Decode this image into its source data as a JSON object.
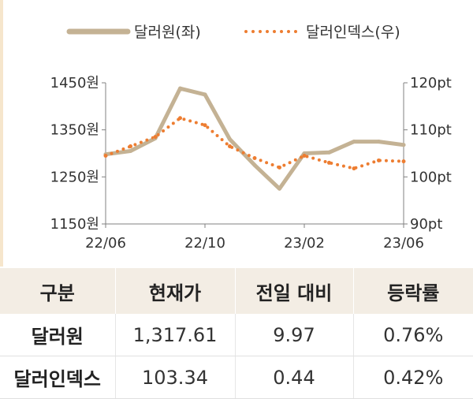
{
  "chart_data": {
    "type": "line",
    "x_ticks": [
      "22/06",
      "22/10",
      "23/02",
      "23/06"
    ],
    "y_left": {
      "ticks": [
        "1450원",
        "1350원",
        "1250원",
        "1150원"
      ],
      "ylim": [
        1150,
        1450
      ]
    },
    "y_right": {
      "ticks": [
        "120pt",
        "110pt",
        "100pt",
        "90pt"
      ],
      "ylim": [
        90,
        120
      ]
    },
    "grid": false,
    "legend_position": "top",
    "series": [
      {
        "name": "달러원(좌)",
        "axis": "left",
        "style": "solid",
        "color": "#c4b294",
        "x": [
          "22/06",
          "22/07",
          "22/08",
          "22/09",
          "22/10",
          "22/11",
          "22/12",
          "23/01",
          "23/02",
          "23/03",
          "23/04",
          "23/05",
          "23/06"
        ],
        "values": [
          1298,
          1305,
          1332,
          1438,
          1425,
          1330,
          1275,
          1225,
          1300,
          1302,
          1325,
          1325,
          1318
        ]
      },
      {
        "name": "달러인덱스(우)",
        "axis": "right",
        "style": "dotted",
        "color": "#ed7d31",
        "x": [
          "22/06",
          "22/07",
          "22/08",
          "22/09",
          "22/10",
          "22/11",
          "22/12",
          "23/01",
          "23/02",
          "23/03",
          "23/04",
          "23/05",
          "23/06"
        ],
        "values": [
          104.5,
          106.5,
          108.5,
          112.5,
          111.0,
          106.5,
          104.0,
          102.0,
          104.5,
          103.0,
          101.8,
          103.5,
          103.3
        ]
      }
    ]
  },
  "table": {
    "headers": [
      "구분",
      "현재가",
      "전일 대비",
      "등락률"
    ],
    "rows": [
      [
        "달러원",
        "1,317.61",
        "9.97",
        "0.76%"
      ],
      [
        "달러인덱스",
        "103.34",
        "0.44",
        "0.42%"
      ]
    ]
  }
}
